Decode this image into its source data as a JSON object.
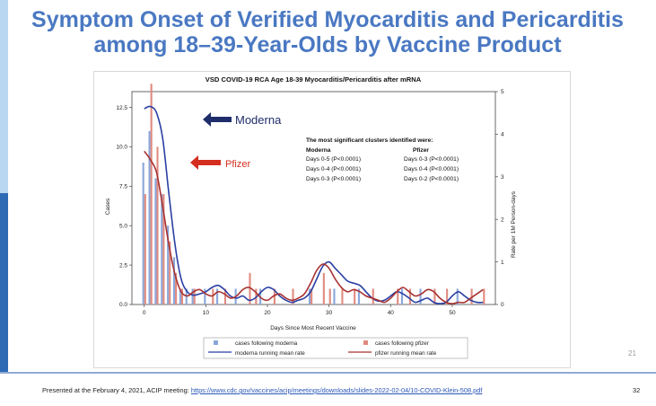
{
  "slide": {
    "title_line1": "Symptom Onset of Verified Myocarditis and Pericarditis",
    "title_line2": "among 18–39-Year-Olds by Vaccine Product",
    "slide_number": "21",
    "footer_text": "Presented at the February 4, 2021, ACIP meeting:",
    "footer_link": "https://www.cdc.gov/vaccines/acip/meetings/downloads/slides-2022-02-04/10-COVID-Klein-508.pdf",
    "page_number": "32"
  },
  "chart_data": {
    "type": "bar",
    "title": "VSD COVID-19 RCA Age 18-39 Myocarditis/Pericarditis after mRNA",
    "xlabel": "Days Since Most Recent Vaccine",
    "ylabel": "Cases",
    "y2label": "Rate per 1M Person-days",
    "xlim": [
      -2,
      57
    ],
    "ylim": [
      0,
      13.5
    ],
    "y2lim": [
      0,
      5
    ],
    "xticks": [
      0,
      10,
      20,
      30,
      40,
      50
    ],
    "yticks": [
      0,
      2.5,
      5,
      7.5,
      10,
      12.5
    ],
    "yticklabels": [
      "0.0",
      "2.5",
      "5.0",
      "7.5",
      "10.0",
      "12.5"
    ],
    "y2ticks": [
      0,
      1,
      2,
      3,
      4,
      5
    ],
    "annotations": {
      "moderna_label": "Moderna",
      "pfizer_label": "Pfizer",
      "moderna_color": "#1f2d6b",
      "pfizer_color": "#d42e1f",
      "cluster_heading": "The most significant clusters identified were:",
      "cluster_col_moderna": "Moderna",
      "cluster_col_pfizer": "Pfizer",
      "cluster_rows": [
        [
          "Days 0-5 (P<0.0001)",
          "Days 0-3 (P<0.0001)"
        ],
        [
          "Days 0-4 (P<0.0001)",
          "Days 0-4 (P<0.0001)"
        ],
        [
          "Days 0-3 (P<0.0001)",
          "Days 0-2 (P<0.0001)"
        ]
      ]
    },
    "legend": {
      "position": "bottom",
      "items": [
        "cases following moderna",
        "cases following pfizer",
        "moderna running mean rate",
        "pfizer running mean rate"
      ]
    },
    "series": [
      {
        "name": "cases following moderna",
        "kind": "bar",
        "color": "#8aa7da",
        "points": [
          [
            0,
            9
          ],
          [
            1,
            11
          ],
          [
            2,
            8
          ],
          [
            3,
            7
          ],
          [
            4,
            5
          ],
          [
            5,
            3
          ],
          [
            6,
            1
          ],
          [
            7,
            1
          ],
          [
            8,
            1
          ],
          [
            10,
            1
          ],
          [
            12,
            1
          ],
          [
            15,
            1
          ],
          [
            19,
            1
          ],
          [
            27,
            1
          ],
          [
            31,
            1
          ],
          [
            35,
            1
          ],
          [
            42,
            1
          ],
          [
            45,
            1
          ],
          [
            51,
            1
          ]
        ]
      },
      {
        "name": "cases following pfizer",
        "kind": "bar",
        "color": "#e08a80",
        "points": [
          [
            0,
            7
          ],
          [
            1,
            14
          ],
          [
            2,
            10
          ],
          [
            3,
            7
          ],
          [
            4,
            4
          ],
          [
            5,
            2
          ],
          [
            6,
            1
          ],
          [
            8,
            1
          ],
          [
            11,
            1
          ],
          [
            13,
            1
          ],
          [
            17,
            2
          ],
          [
            18,
            1
          ],
          [
            21,
            1
          ],
          [
            24,
            1
          ],
          [
            27,
            1
          ],
          [
            29,
            2
          ],
          [
            30,
            1
          ],
          [
            32,
            1
          ],
          [
            34,
            1
          ],
          [
            37,
            1
          ],
          [
            41,
            1
          ],
          [
            43,
            1
          ],
          [
            47,
            1
          ],
          [
            49,
            1
          ],
          [
            53,
            1
          ],
          [
            55,
            1
          ]
        ]
      },
      {
        "name": "moderna running mean rate",
        "kind": "line",
        "axis": "y2",
        "color": "#2a3fa3",
        "points": [
          [
            0,
            4.6
          ],
          [
            1,
            4.65
          ],
          [
            2,
            4.5
          ],
          [
            3,
            3.9
          ],
          [
            4,
            2.6
          ],
          [
            5,
            1.4
          ],
          [
            6,
            0.6
          ],
          [
            7,
            0.3
          ],
          [
            8,
            0.22
          ],
          [
            9,
            0.25
          ],
          [
            10,
            0.3
          ],
          [
            11,
            0.4
          ],
          [
            12,
            0.45
          ],
          [
            13,
            0.35
          ],
          [
            14,
            0.2
          ],
          [
            15,
            0.15
          ],
          [
            16,
            0.2
          ],
          [
            17,
            0.1
          ],
          [
            18,
            0.15
          ],
          [
            19,
            0.3
          ],
          [
            20,
            0.4
          ],
          [
            21,
            0.35
          ],
          [
            22,
            0.2
          ],
          [
            23,
            0.1
          ],
          [
            24,
            0.05
          ],
          [
            25,
            0.1
          ],
          [
            26,
            0.15
          ],
          [
            27,
            0.3
          ],
          [
            28,
            0.6
          ],
          [
            29,
            0.9
          ],
          [
            30,
            1.0
          ],
          [
            31,
            0.85
          ],
          [
            32,
            0.7
          ],
          [
            33,
            0.55
          ],
          [
            34,
            0.5
          ],
          [
            35,
            0.45
          ],
          [
            36,
            0.3
          ],
          [
            37,
            0.15
          ],
          [
            38,
            0.08
          ],
          [
            39,
            0.1
          ],
          [
            40,
            0.2
          ],
          [
            41,
            0.3
          ],
          [
            42,
            0.25
          ],
          [
            43,
            0.15
          ],
          [
            44,
            0.05
          ],
          [
            45,
            0.1
          ],
          [
            46,
            0.15
          ],
          [
            47,
            0.05
          ],
          [
            48,
            0.02
          ],
          [
            49,
            0.05
          ],
          [
            50,
            0.2
          ],
          [
            51,
            0.3
          ],
          [
            52,
            0.2
          ],
          [
            53,
            0.1
          ],
          [
            54,
            0.05
          ],
          [
            55,
            0.05
          ]
        ]
      },
      {
        "name": "pfizer running mean rate",
        "kind": "line",
        "axis": "y2",
        "color": "#a83232",
        "points": [
          [
            0,
            3.6
          ],
          [
            1,
            3.4
          ],
          [
            2,
            3.1
          ],
          [
            3,
            2.3
          ],
          [
            4,
            1.4
          ],
          [
            5,
            0.7
          ],
          [
            6,
            0.3
          ],
          [
            7,
            0.2
          ],
          [
            8,
            0.3
          ],
          [
            9,
            0.35
          ],
          [
            10,
            0.25
          ],
          [
            11,
            0.2
          ],
          [
            12,
            0.3
          ],
          [
            13,
            0.25
          ],
          [
            14,
            0.15
          ],
          [
            15,
            0.2
          ],
          [
            16,
            0.35
          ],
          [
            17,
            0.4
          ],
          [
            18,
            0.3
          ],
          [
            19,
            0.15
          ],
          [
            20,
            0.1
          ],
          [
            21,
            0.2
          ],
          [
            22,
            0.25
          ],
          [
            23,
            0.15
          ],
          [
            24,
            0.1
          ],
          [
            25,
            0.15
          ],
          [
            26,
            0.25
          ],
          [
            27,
            0.5
          ],
          [
            28,
            0.8
          ],
          [
            29,
            0.95
          ],
          [
            30,
            0.85
          ],
          [
            31,
            0.6
          ],
          [
            32,
            0.4
          ],
          [
            33,
            0.3
          ],
          [
            34,
            0.35
          ],
          [
            35,
            0.3
          ],
          [
            36,
            0.2
          ],
          [
            37,
            0.15
          ],
          [
            38,
            0.1
          ],
          [
            39,
            0.05
          ],
          [
            40,
            0.15
          ],
          [
            41,
            0.3
          ],
          [
            42,
            0.4
          ],
          [
            43,
            0.3
          ],
          [
            44,
            0.2
          ],
          [
            45,
            0.25
          ],
          [
            46,
            0.35
          ],
          [
            47,
            0.3
          ],
          [
            48,
            0.15
          ],
          [
            49,
            0.05
          ],
          [
            50,
            0.02
          ],
          [
            51,
            0.05
          ],
          [
            52,
            0.05
          ],
          [
            53,
            0.15
          ],
          [
            54,
            0.25
          ],
          [
            55,
            0.35
          ]
        ]
      }
    ]
  }
}
